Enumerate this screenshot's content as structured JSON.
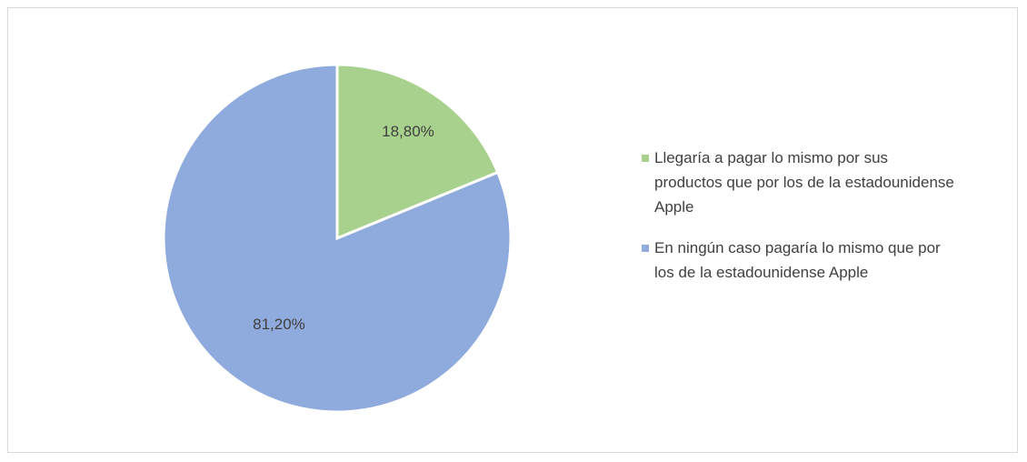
{
  "chart_data": {
    "type": "pie",
    "categories": [
      "Llegaría a pagar lo mismo por sus productos que por los de la estadounidense Apple",
      "En ningún caso pagaría lo mismo que por los de la estadounidense Apple"
    ],
    "values": [
      18.8,
      81.2
    ],
    "value_labels": [
      "18,80%",
      "81,20%"
    ],
    "colors": [
      "#a9d18e",
      "#8faadc"
    ],
    "legend": "right"
  }
}
